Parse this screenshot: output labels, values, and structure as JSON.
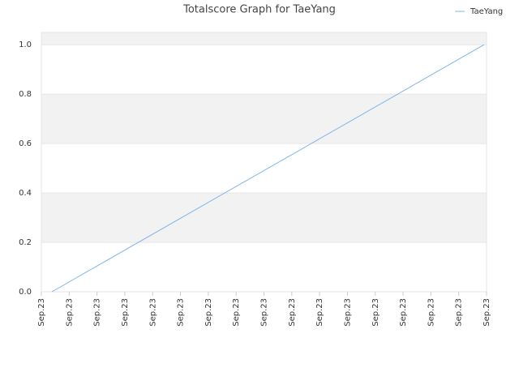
{
  "chart_data": {
    "type": "line",
    "title": "Totalscore Graph for TaeYang",
    "xlim": [
      0,
      16
    ],
    "xticks": [
      {
        "value": 0,
        "label": "Sep.23"
      },
      {
        "value": 1,
        "label": "Sep.23"
      },
      {
        "value": 2,
        "label": "Sep.23"
      },
      {
        "value": 3,
        "label": "Sep.23"
      },
      {
        "value": 4,
        "label": "Sep.23"
      },
      {
        "value": 5,
        "label": "Sep.23"
      },
      {
        "value": 6,
        "label": "Sep.23"
      },
      {
        "value": 7,
        "label": "Sep.23"
      },
      {
        "value": 8,
        "label": "Sep.23"
      },
      {
        "value": 9,
        "label": "Sep.23"
      },
      {
        "value": 10,
        "label": "Sep.23"
      },
      {
        "value": 11,
        "label": "Sep.23"
      },
      {
        "value": 12,
        "label": "Sep.23"
      },
      {
        "value": 13,
        "label": "Sep.23"
      },
      {
        "value": 14,
        "label": "Sep.23"
      },
      {
        "value": 15,
        "label": "Sep.23"
      },
      {
        "value": 16,
        "label": "Sep.23"
      }
    ],
    "ylim": [
      0,
      1.05
    ],
    "yticks": [
      {
        "value": 0,
        "label": "0.0"
      },
      0.2,
      0.4,
      0.6,
      0.8,
      {
        "value": 1,
        "label": "1.0"
      }
    ],
    "series": [
      {
        "name": "TaeYang",
        "color": "#7cb5ec",
        "x": [
          0.38,
          15.91
        ],
        "values": [
          0,
          1
        ]
      }
    ],
    "legend": "top-right",
    "grid": true
  }
}
